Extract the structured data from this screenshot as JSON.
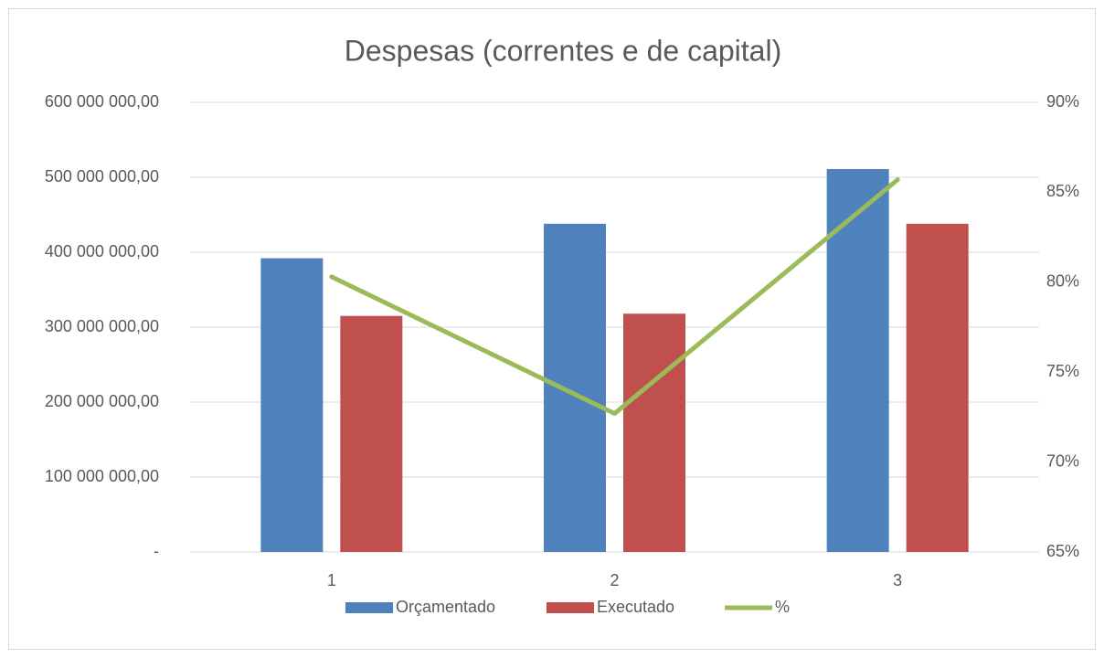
{
  "chart_data": {
    "type": "bar",
    "title": "Despesas (correntes e de capital)",
    "categories": [
      "1",
      "2",
      "3"
    ],
    "series": [
      {
        "name": "Orçamentado",
        "color": "#4f81bd",
        "values": [
          392000000,
          438000000,
          511000000
        ]
      },
      {
        "name": "Executado",
        "color": "#c0504d",
        "values": [
          315000000,
          318000000,
          438000000
        ]
      },
      {
        "name": "%",
        "color": "#9bbb59",
        "type": "line",
        "axis": "y2",
        "values": [
          80.3,
          72.7,
          85.7
        ]
      }
    ],
    "ylim": [
      0,
      600000000
    ],
    "yticks": [
      {
        "value": 0,
        "label": "-"
      },
      {
        "value": 100000000,
        "label": "100 000 000,00"
      },
      {
        "value": 200000000,
        "label": "200 000 000,00"
      },
      {
        "value": 300000000,
        "label": "300 000 000,00"
      },
      {
        "value": 400000000,
        "label": "400 000 000,00"
      },
      {
        "value": 500000000,
        "label": "500 000 000,00"
      },
      {
        "value": 600000000,
        "label": "600 000 000,00"
      }
    ],
    "y2lim": [
      65,
      90
    ],
    "y2ticks": [
      {
        "value": 65,
        "label": "65%"
      },
      {
        "value": 70,
        "label": "70%"
      },
      {
        "value": 75,
        "label": "75%"
      },
      {
        "value": 80,
        "label": "80%"
      },
      {
        "value": 85,
        "label": "85%"
      },
      {
        "value": 90,
        "label": "90%"
      }
    ],
    "grid": true,
    "legend": "bottom"
  }
}
